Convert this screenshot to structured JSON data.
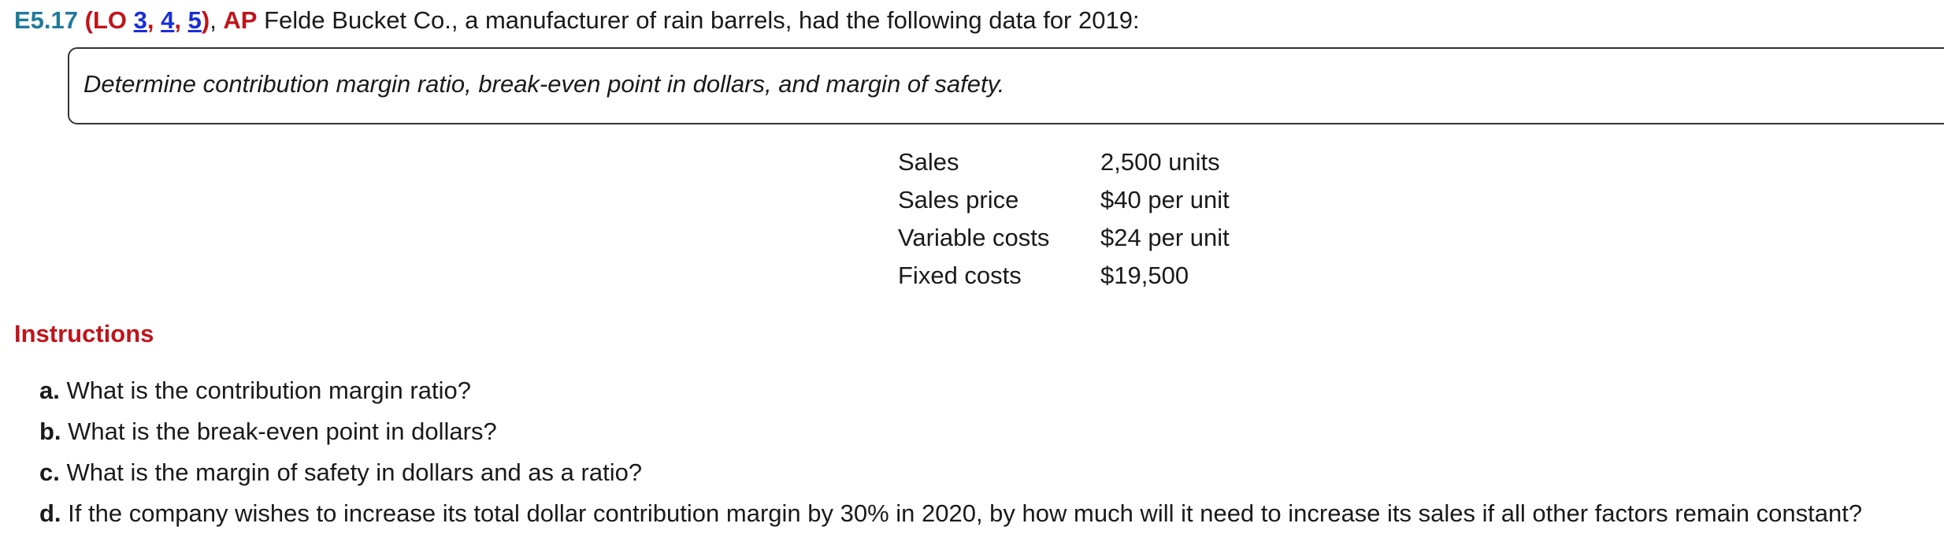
{
  "header": {
    "code": "E5.17",
    "lo_open": "(LO ",
    "lo_links": [
      "3",
      "4",
      "5"
    ],
    "lo_sep": ", ",
    "lo_close": ")",
    "after_lo": ", ",
    "ap": "AP",
    "intro": " Felde Bucket Co., a manufacturer of rain barrels, had the following data for 2019:"
  },
  "task": {
    "text": "Determine contribution margin ratio, break-even point in dollars, and margin of safety."
  },
  "data_table": [
    {
      "label": "Sales",
      "value": "2,500 units"
    },
    {
      "label": "Sales price",
      "value": "$40 per unit"
    },
    {
      "label": "Variable costs",
      "value": "$24 per unit"
    },
    {
      "label": "Fixed costs",
      "value": "$19,500"
    }
  ],
  "instructions": {
    "title": "Instructions",
    "questions": [
      {
        "letter": "a.",
        "text": " What is the contribution margin ratio?"
      },
      {
        "letter": "b.",
        "text": " What is the break-even point in dollars?"
      },
      {
        "letter": "c.",
        "text": " What is the margin of safety in dollars and as a ratio?"
      },
      {
        "letter": "d.",
        "text": " If the company wishes to increase its total dollar contribution margin by 30% in 2020, by how much will it need to increase its sales if all other factors remain constant?"
      }
    ]
  }
}
